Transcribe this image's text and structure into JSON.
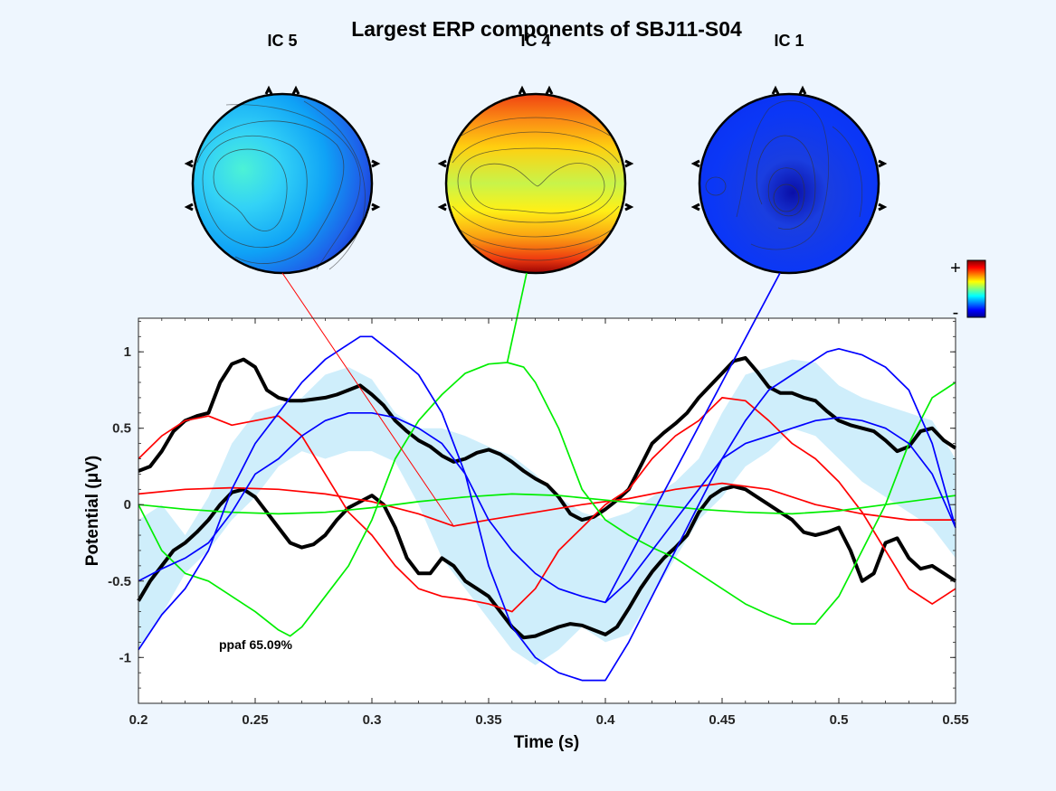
{
  "chart_data": {
    "type": "line",
    "title": "Largest ERP components of SBJ11-S04",
    "xlabel": "Time (s)",
    "ylabel": "Potential (μV)",
    "xlim": [
      0.2,
      0.55
    ],
    "ylim": [
      -1.3,
      1.22
    ],
    "xticks": [
      0.2,
      0.25,
      0.3,
      0.35,
      0.4,
      0.45,
      0.5,
      0.55
    ],
    "yticks": [
      -1,
      -0.5,
      0,
      0.5,
      1
    ],
    "xtick_labels": [
      "0.2",
      "0.25",
      "0.3",
      "0.35",
      "0.4",
      "0.45",
      "0.5",
      "0.55"
    ],
    "ytick_labels": [
      "-1",
      "-0.5",
      "0",
      "0.5",
      "1"
    ],
    "annotation": "ppaf 65.09%",
    "colorbar": {
      "plus_label": "+",
      "minus_label": "-"
    },
    "components": [
      {
        "label": "IC 5",
        "color": "#ff0000",
        "map": "ic5",
        "connector_to": [
          0.335,
          -0.14
        ]
      },
      {
        "label": "IC 4",
        "color": "#00ee00",
        "map": "ic4",
        "connector_to": [
          0.358,
          0.93
        ]
      },
      {
        "label": "IC 1",
        "color": "#0000ff",
        "map": "ic1",
        "connector_to": [
          0.4,
          -0.64
        ]
      }
    ],
    "band": {
      "color": "#cfeefb",
      "x": [
        0.2,
        0.21,
        0.22,
        0.23,
        0.24,
        0.25,
        0.26,
        0.27,
        0.28,
        0.29,
        0.3,
        0.31,
        0.32,
        0.33,
        0.34,
        0.35,
        0.36,
        0.37,
        0.38,
        0.39,
        0.4,
        0.41,
        0.42,
        0.43,
        0.44,
        0.45,
        0.46,
        0.47,
        0.48,
        0.49,
        0.5,
        0.51,
        0.52,
        0.53,
        0.54,
        0.55
      ],
      "upper": [
        -0.1,
        0.0,
        -0.2,
        0.05,
        0.4,
        0.6,
        0.65,
        0.7,
        0.85,
        0.9,
        0.82,
        0.6,
        0.5,
        0.5,
        0.45,
        0.38,
        0.32,
        0.2,
        0.05,
        -0.05,
        -0.1,
        -0.05,
        0.05,
        0.15,
        0.3,
        0.6,
        0.85,
        0.9,
        0.95,
        0.93,
        0.78,
        0.7,
        0.65,
        0.6,
        0.55,
        0.3
      ],
      "lower": [
        -0.95,
        -0.72,
        -0.45,
        -0.3,
        -0.1,
        0.05,
        0.25,
        0.35,
        0.3,
        0.35,
        0.35,
        0.28,
        0.0,
        -0.35,
        -0.55,
        -0.75,
        -0.95,
        -1.05,
        -0.95,
        -0.8,
        -0.9,
        -0.85,
        -0.6,
        -0.35,
        -0.1,
        0.05,
        0.25,
        0.35,
        0.5,
        0.45,
        0.3,
        0.15,
        0.05,
        -0.05,
        -0.15,
        -0.35
      ]
    },
    "series": [
      {
        "color": "#000000",
        "width": 4,
        "x": [
          0.2,
          0.205,
          0.21,
          0.215,
          0.22,
          0.225,
          0.23,
          0.235,
          0.24,
          0.245,
          0.25,
          0.255,
          0.26,
          0.265,
          0.27,
          0.275,
          0.28,
          0.285,
          0.29,
          0.295,
          0.3,
          0.305,
          0.31,
          0.315,
          0.32,
          0.325,
          0.33,
          0.335,
          0.34,
          0.345,
          0.35,
          0.355,
          0.36,
          0.365,
          0.37,
          0.375,
          0.38,
          0.385,
          0.39,
          0.395,
          0.4,
          0.405,
          0.41,
          0.415,
          0.42,
          0.425,
          0.43,
          0.435,
          0.44,
          0.445,
          0.45,
          0.455,
          0.46,
          0.465,
          0.47,
          0.475,
          0.48,
          0.485,
          0.49,
          0.495,
          0.5,
          0.505,
          0.51,
          0.515,
          0.52,
          0.525,
          0.53,
          0.535,
          0.54,
          0.545,
          0.55
        ],
        "y": [
          0.22,
          0.25,
          0.35,
          0.48,
          0.55,
          0.58,
          0.6,
          0.8,
          0.92,
          0.95,
          0.9,
          0.75,
          0.7,
          0.68,
          0.68,
          0.69,
          0.7,
          0.72,
          0.75,
          0.78,
          0.72,
          0.65,
          0.55,
          0.48,
          0.42,
          0.38,
          0.32,
          0.28,
          0.3,
          0.34,
          0.36,
          0.33,
          0.28,
          0.22,
          0.17,
          0.13,
          0.05,
          -0.06,
          -0.1,
          -0.08,
          -0.03,
          0.03,
          0.1,
          0.25,
          0.4,
          0.47,
          0.53,
          0.6,
          0.7,
          0.78,
          0.86,
          0.94,
          0.96,
          0.87,
          0.77,
          0.73,
          0.73,
          0.7,
          0.68,
          0.61,
          0.55,
          0.52,
          0.5,
          0.48,
          0.42,
          0.35,
          0.38,
          0.48,
          0.5,
          0.42,
          0.37
        ]
      },
      {
        "color": "#000000",
        "width": 4,
        "x": [
          0.2,
          0.205,
          0.21,
          0.215,
          0.22,
          0.225,
          0.23,
          0.235,
          0.24,
          0.245,
          0.25,
          0.255,
          0.26,
          0.265,
          0.27,
          0.275,
          0.28,
          0.285,
          0.29,
          0.295,
          0.3,
          0.305,
          0.31,
          0.315,
          0.32,
          0.325,
          0.33,
          0.335,
          0.34,
          0.345,
          0.35,
          0.355,
          0.36,
          0.365,
          0.37,
          0.375,
          0.38,
          0.385,
          0.39,
          0.395,
          0.4,
          0.405,
          0.41,
          0.415,
          0.42,
          0.425,
          0.43,
          0.435,
          0.44,
          0.445,
          0.45,
          0.455,
          0.46,
          0.465,
          0.47,
          0.475,
          0.48,
          0.485,
          0.49,
          0.495,
          0.5,
          0.505,
          0.51,
          0.515,
          0.52,
          0.525,
          0.53,
          0.535,
          0.54,
          0.545,
          0.55
        ],
        "y": [
          -0.63,
          -0.5,
          -0.4,
          -0.3,
          -0.25,
          -0.18,
          -0.1,
          0.0,
          0.08,
          0.1,
          0.05,
          -0.05,
          -0.15,
          -0.25,
          -0.28,
          -0.26,
          -0.2,
          -0.1,
          -0.02,
          0.02,
          0.06,
          0.0,
          -0.15,
          -0.35,
          -0.45,
          -0.45,
          -0.35,
          -0.4,
          -0.5,
          -0.55,
          -0.6,
          -0.7,
          -0.8,
          -0.87,
          -0.86,
          -0.83,
          -0.8,
          -0.78,
          -0.79,
          -0.82,
          -0.85,
          -0.8,
          -0.68,
          -0.55,
          -0.44,
          -0.35,
          -0.28,
          -0.2,
          -0.05,
          0.05,
          0.1,
          0.12,
          0.1,
          0.05,
          0.0,
          -0.05,
          -0.1,
          -0.18,
          -0.2,
          -0.18,
          -0.15,
          -0.3,
          -0.5,
          -0.45,
          -0.25,
          -0.22,
          -0.35,
          -0.42,
          -0.4,
          -0.45,
          -0.5
        ]
      },
      {
        "color": "#ff0000",
        "width": 1.7,
        "x": [
          0.2,
          0.21,
          0.22,
          0.23,
          0.24,
          0.25,
          0.26,
          0.27,
          0.28,
          0.29,
          0.3,
          0.31,
          0.32,
          0.33,
          0.34,
          0.35,
          0.36,
          0.37,
          0.38,
          0.39,
          0.4,
          0.41,
          0.42,
          0.43,
          0.44,
          0.45,
          0.46,
          0.47,
          0.48,
          0.49,
          0.5,
          0.51,
          0.52,
          0.53,
          0.54,
          0.55
        ],
        "y": [
          0.3,
          0.45,
          0.55,
          0.58,
          0.52,
          0.55,
          0.58,
          0.45,
          0.2,
          -0.05,
          -0.2,
          -0.4,
          -0.55,
          -0.6,
          -0.62,
          -0.65,
          -0.7,
          -0.55,
          -0.3,
          -0.15,
          0.0,
          0.1,
          0.3,
          0.45,
          0.55,
          0.7,
          0.68,
          0.55,
          0.4,
          0.3,
          0.15,
          -0.05,
          -0.3,
          -0.55,
          -0.65,
          -0.55
        ]
      },
      {
        "color": "#ff0000",
        "width": 1.7,
        "x": [
          0.2,
          0.22,
          0.24,
          0.26,
          0.28,
          0.3,
          0.32,
          0.335,
          0.35,
          0.37,
          0.39,
          0.41,
          0.43,
          0.45,
          0.47,
          0.49,
          0.51,
          0.53,
          0.55
        ],
        "y": [
          0.07,
          0.1,
          0.11,
          0.1,
          0.07,
          0.02,
          -0.06,
          -0.14,
          -0.1,
          -0.05,
          0.0,
          0.04,
          0.1,
          0.14,
          0.1,
          0.0,
          -0.06,
          -0.1,
          -0.1
        ]
      },
      {
        "color": "#00ee00",
        "width": 1.7,
        "x": [
          0.2,
          0.21,
          0.22,
          0.23,
          0.24,
          0.25,
          0.26,
          0.265,
          0.27,
          0.28,
          0.29,
          0.3,
          0.31,
          0.32,
          0.33,
          0.34,
          0.35,
          0.358,
          0.365,
          0.37,
          0.38,
          0.39,
          0.4,
          0.41,
          0.42,
          0.43,
          0.44,
          0.45,
          0.46,
          0.47,
          0.48,
          0.49,
          0.5,
          0.51,
          0.52,
          0.53,
          0.54,
          0.55
        ],
        "y": [
          0.0,
          -0.3,
          -0.45,
          -0.5,
          -0.6,
          -0.7,
          -0.82,
          -0.86,
          -0.8,
          -0.6,
          -0.4,
          -0.1,
          0.3,
          0.55,
          0.72,
          0.86,
          0.92,
          0.93,
          0.9,
          0.8,
          0.5,
          0.1,
          -0.1,
          -0.2,
          -0.28,
          -0.35,
          -0.45,
          -0.55,
          -0.65,
          -0.72,
          -0.78,
          -0.78,
          -0.6,
          -0.3,
          0.0,
          0.4,
          0.7,
          0.8
        ]
      },
      {
        "color": "#00ee00",
        "width": 1.7,
        "x": [
          0.2,
          0.22,
          0.24,
          0.26,
          0.28,
          0.3,
          0.32,
          0.34,
          0.36,
          0.38,
          0.4,
          0.42,
          0.44,
          0.46,
          0.48,
          0.5,
          0.52,
          0.55
        ],
        "y": [
          0.0,
          -0.03,
          -0.05,
          -0.06,
          -0.05,
          -0.02,
          0.02,
          0.05,
          0.07,
          0.06,
          0.03,
          0.0,
          -0.03,
          -0.05,
          -0.06,
          -0.04,
          0.0,
          0.06
        ]
      },
      {
        "color": "#0000ff",
        "width": 1.7,
        "x": [
          0.2,
          0.21,
          0.22,
          0.23,
          0.24,
          0.25,
          0.26,
          0.27,
          0.28,
          0.29,
          0.295,
          0.3,
          0.31,
          0.32,
          0.33,
          0.34,
          0.35,
          0.36,
          0.37,
          0.38,
          0.39,
          0.4,
          0.41,
          0.42,
          0.43,
          0.44,
          0.45,
          0.46,
          0.47,
          0.48,
          0.49,
          0.495,
          0.5,
          0.51,
          0.52,
          0.53,
          0.54,
          0.55
        ],
        "y": [
          -0.95,
          -0.72,
          -0.55,
          -0.3,
          0.1,
          0.4,
          0.6,
          0.8,
          0.95,
          1.05,
          1.1,
          1.1,
          0.98,
          0.85,
          0.6,
          0.2,
          -0.4,
          -0.8,
          -1.0,
          -1.1,
          -1.15,
          -1.15,
          -0.9,
          -0.6,
          -0.3,
          0.0,
          0.3,
          0.55,
          0.75,
          0.85,
          0.95,
          1.0,
          1.02,
          0.98,
          0.9,
          0.75,
          0.4,
          -0.15
        ]
      },
      {
        "color": "#0000ff",
        "width": 1.7,
        "x": [
          0.2,
          0.21,
          0.22,
          0.23,
          0.24,
          0.25,
          0.26,
          0.27,
          0.28,
          0.29,
          0.3,
          0.31,
          0.32,
          0.33,
          0.34,
          0.35,
          0.36,
          0.37,
          0.38,
          0.39,
          0.4,
          0.41,
          0.42,
          0.43,
          0.44,
          0.45,
          0.46,
          0.47,
          0.48,
          0.49,
          0.5,
          0.51,
          0.52,
          0.53,
          0.54,
          0.55
        ],
        "y": [
          -0.5,
          -0.42,
          -0.35,
          -0.25,
          -0.05,
          0.2,
          0.3,
          0.45,
          0.55,
          0.6,
          0.6,
          0.57,
          0.5,
          0.4,
          0.2,
          -0.1,
          -0.3,
          -0.45,
          -0.55,
          -0.6,
          -0.64,
          -0.5,
          -0.3,
          -0.1,
          0.1,
          0.3,
          0.4,
          0.45,
          0.5,
          0.55,
          0.57,
          0.55,
          0.5,
          0.4,
          0.2,
          -0.15
        ]
      }
    ]
  }
}
